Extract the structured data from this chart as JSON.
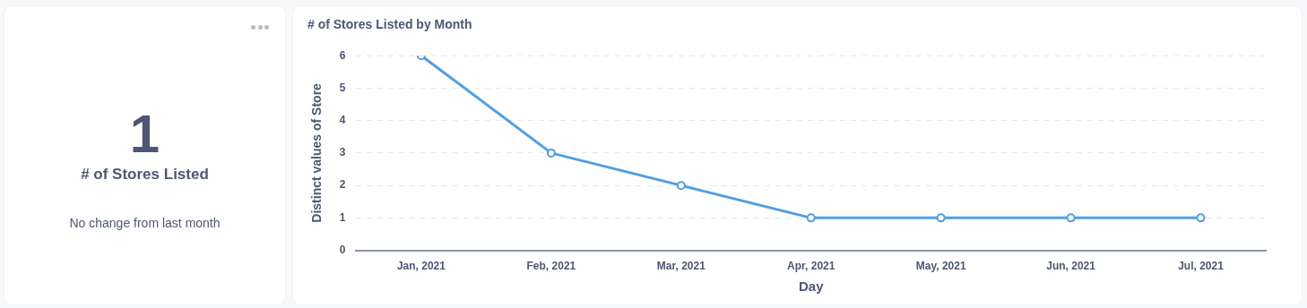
{
  "chart_data": [
    {
      "type": "other",
      "title": "# of Stores Listed",
      "annotations": [
        "1",
        "No change from last month"
      ]
    },
    {
      "type": "line",
      "title": "# of Stores Listed by Month",
      "xlabel": "Day",
      "ylabel": "Distinct values of Store",
      "categories": [
        "Jan, 2021",
        "Feb, 2021",
        "Mar, 2021",
        "Apr, 2021",
        "May, 2021",
        "Jun, 2021",
        "Jul, 2021"
      ],
      "series": [
        {
          "color": "#509ee3",
          "values": [
            6,
            3,
            2,
            1,
            1,
            1,
            1
          ]
        }
      ],
      "ylim": [
        0,
        6
      ],
      "yticks": [
        0,
        1,
        2,
        3,
        4,
        5,
        6
      ],
      "grid": "y",
      "marker": "circle",
      "line_style": "solid",
      "legend": false
    }
  ]
}
